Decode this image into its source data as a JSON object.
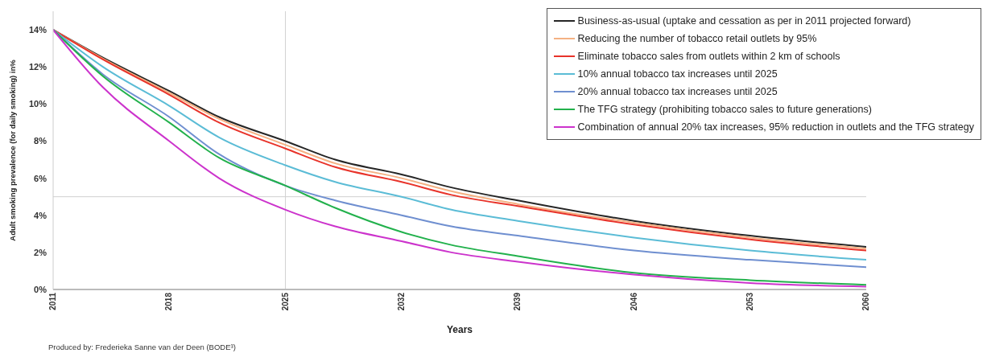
{
  "chart_data": {
    "type": "line",
    "xlabel": "Years",
    "ylabel": "Adult smoking prevalence (for daily smoking) in%",
    "x": [
      2011,
      2014,
      2018,
      2021,
      2025,
      2028,
      2032,
      2035,
      2039,
      2046,
      2053,
      2060
    ],
    "xlim": [
      2011,
      2060
    ],
    "xticks": [
      2011,
      2018,
      2025,
      2032,
      2039,
      2046,
      2053,
      2060
    ],
    "ylim": [
      0,
      15
    ],
    "yticks": [
      {
        "value": 0,
        "label": "0%"
      },
      {
        "value": 2,
        "label": "2%"
      },
      {
        "value": 4,
        "label": "4%"
      },
      {
        "value": 6,
        "label": "6%"
      },
      {
        "value": 8,
        "label": "8%"
      },
      {
        "value": 10,
        "label": "10%"
      },
      {
        "value": 12,
        "label": "12%"
      },
      {
        "value": 14,
        "label": "14%"
      }
    ],
    "grid": false,
    "legend": "top right",
    "marker": "none",
    "line_style": "solid",
    "ref_lines": [
      {
        "axis": "x",
        "value": 2025,
        "color": "#d0d0d0"
      },
      {
        "axis": "y",
        "value": 5,
        "color": "#d0d0d0"
      }
    ],
    "series": [
      {
        "name": "Business-as-usual (uptake and cessation as per in 2011 projected forward)",
        "color": "#262626",
        "values": [
          14,
          12.5,
          10.7,
          9.3,
          8.0,
          7.0,
          6.2,
          5.5,
          4.8,
          3.7,
          2.9,
          2.3
        ]
      },
      {
        "name": "Reducing the number of tobacco retail outlets by 95%",
        "color": "#f4b183",
        "values": [
          14,
          12.45,
          10.6,
          9.2,
          7.8,
          6.8,
          6.0,
          5.3,
          4.6,
          3.6,
          2.8,
          2.2
        ]
      },
      {
        "name": "Eliminate tobacco sales from outlets within 2 km of schools",
        "color": "#e8332a",
        "values": [
          14,
          12.4,
          10.5,
          9.0,
          7.6,
          6.6,
          5.8,
          5.1,
          4.5,
          3.5,
          2.7,
          2.1
        ]
      },
      {
        "name": "10% annual tobacco tax increases until 2025",
        "color": "#5bbcd6",
        "values": [
          14,
          12.0,
          9.9,
          8.2,
          6.7,
          5.8,
          5.0,
          4.3,
          3.7,
          2.8,
          2.1,
          1.6
        ]
      },
      {
        "name": "20% annual tobacco tax increases until 2025",
        "color": "#6f8fd0",
        "values": [
          14,
          11.6,
          9.3,
          7.3,
          5.6,
          4.8,
          4.0,
          3.4,
          2.9,
          2.1,
          1.6,
          1.2
        ]
      },
      {
        "name": "The TFG strategy (prohibiting tobacco sales to future generations)",
        "color": "#22b14c",
        "values": [
          14,
          11.5,
          9.0,
          7.1,
          5.6,
          4.4,
          3.1,
          2.4,
          1.8,
          0.9,
          0.5,
          0.25
        ]
      },
      {
        "name": "Combination of annual 20% tax increases, 95% reduction in outlets and the TFG strategy",
        "color": "#cc33cc",
        "values": [
          14,
          10.9,
          8.0,
          6.0,
          4.3,
          3.4,
          2.6,
          2.0,
          1.5,
          0.8,
          0.35,
          0.15
        ]
      }
    ],
    "annotations": [
      "Produced by: Frederieka Sanne van der Deen (BODE³)"
    ]
  }
}
